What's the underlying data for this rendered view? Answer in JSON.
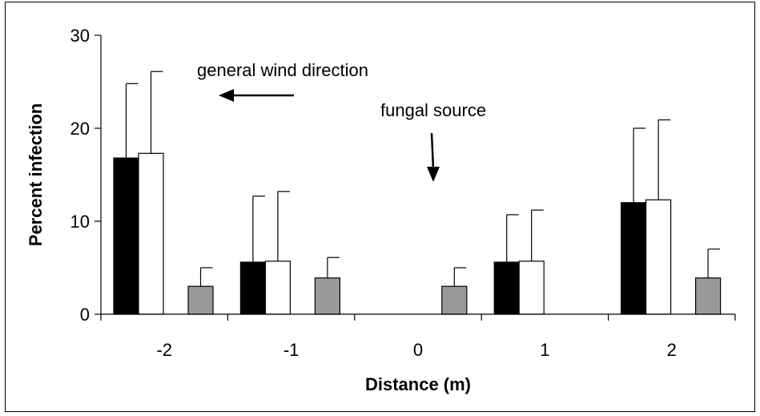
{
  "chart_data": {
    "type": "bar",
    "title": "",
    "xlabel": "Distance (m)",
    "ylabel": "Percent infection",
    "categories": [
      "-2",
      "-1",
      "0",
      "1",
      "2"
    ],
    "ylim": [
      0,
      30
    ],
    "yticks": [
      "0",
      "10",
      "20",
      "30"
    ],
    "grid": false,
    "series": [
      {
        "color": "#000000",
        "values": [
          16.8,
          5.6,
          0,
          5.6,
          12.0
        ],
        "error_upper": [
          8.0,
          7.1,
          0,
          5.1,
          8.0
        ]
      },
      {
        "color": "#ffffff",
        "values": [
          17.3,
          5.7,
          0,
          5.7,
          12.3
        ],
        "error_upper": [
          8.8,
          7.5,
          0,
          5.5,
          8.6
        ]
      },
      {
        "color": "#999999",
        "values": [
          3.0,
          3.9,
          3.0,
          0,
          3.9
        ],
        "error_upper": [
          2.0,
          2.2,
          2.0,
          0,
          3.1
        ]
      }
    ],
    "annotations": [
      {
        "text": "general wind direction",
        "arrow": "left"
      },
      {
        "text": "fungal source",
        "arrow": "down"
      }
    ]
  }
}
